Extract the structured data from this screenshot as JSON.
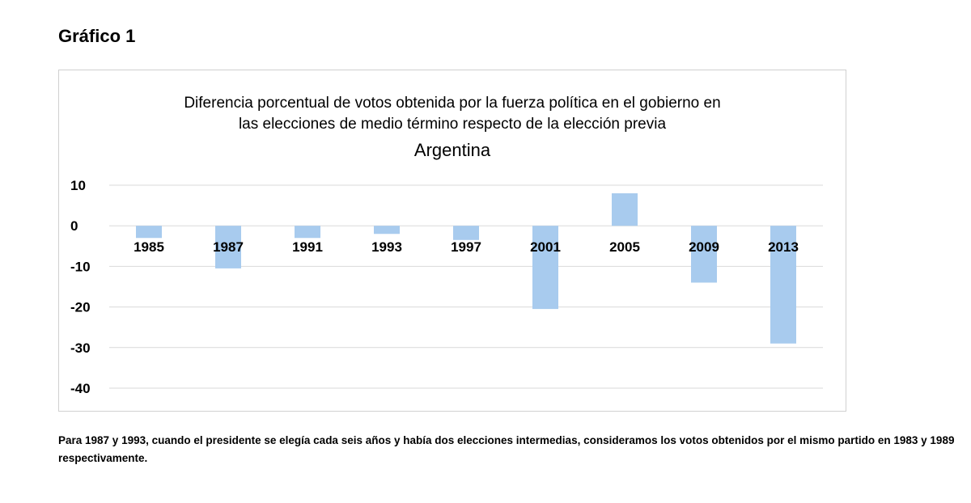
{
  "figure_label": "Gráfico 1",
  "footnote": "Para 1987 y 1993, cuando el presidente se elegía cada seis años y había dos elecciones intermedias, consideramos los votos obtenidos por el mismo partido en 1983 y 1989 respectivamente.",
  "chart_data": {
    "type": "bar",
    "title_lines": [
      "Diferencia porcentual de votos obtenida por la fuerza política en el gobierno en",
      "las elecciones de medio término respecto de la elección previa"
    ],
    "subtitle": "Argentina",
    "categories": [
      "1985",
      "1987",
      "1991",
      "1993",
      "1997",
      "2001",
      "2005",
      "2009",
      "2013"
    ],
    "values": [
      -3,
      -10.5,
      -3,
      -2,
      -3.5,
      -20.5,
      8,
      -14,
      -29
    ],
    "ylim": [
      -40,
      10
    ],
    "yticks": [
      "10",
      "0",
      "-10",
      "-20",
      "-30",
      "-40"
    ],
    "grid": true,
    "legend": "none",
    "bar_color": "#a8cbee",
    "xlabel": "",
    "ylabel": ""
  }
}
